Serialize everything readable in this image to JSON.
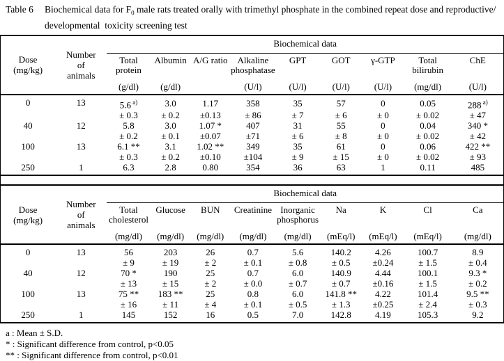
{
  "title": {
    "label": "Table 6",
    "caption_pre": "Biochemical data for F",
    "caption_sub": "0",
    "caption_post": " male rats treated orally with trimethyl phosphate in the combined repeat dose and reproductive/",
    "caption_line2": "developmental  toxicity screening test"
  },
  "header": {
    "dose_label": "Dose",
    "dose_unit": "(mg/kg)",
    "n_lines": [
      "Number",
      "of",
      "animals"
    ]
  },
  "table1": {
    "spanner": "Biochemical data",
    "columns": [
      {
        "name": "Total protein",
        "unit": "(g/dl)"
      },
      {
        "name": "Albumin",
        "unit": "(g/dl)"
      },
      {
        "name": "A/G ratio",
        "unit": ""
      },
      {
        "name": "Alkaline phosphatase",
        "unit": "(U/l)"
      },
      {
        "name": "GPT",
        "unit": "(U/l)"
      },
      {
        "name": "GOT",
        "unit": "(U/l)"
      },
      {
        "name": "γ-GTP",
        "unit": "(U/l)"
      },
      {
        "name": "Total bilirubin",
        "unit": "(mg/dl)"
      },
      {
        "name": "ChE",
        "unit": "(U/l)"
      }
    ],
    "rows": [
      {
        "dose": "0",
        "n": "13",
        "cells": [
          {
            "m": "5.6",
            "mk": "a)",
            "sd": "± 0.3"
          },
          {
            "m": "3.0",
            "sd": "± 0.2"
          },
          {
            "m": "1.17",
            "sd": "±0.13"
          },
          {
            "m": "358",
            "sd": "± 86"
          },
          {
            "m": "35",
            "sd": "± 7"
          },
          {
            "m": "57",
            "sd": "± 6"
          },
          {
            "m": "0",
            "sd": "± 0"
          },
          {
            "m": "0.05",
            "sd": "± 0.02"
          },
          {
            "m": "288",
            "mk": "a)",
            "sd": "± 47"
          }
        ]
      },
      {
        "dose": "40",
        "n": "12",
        "cells": [
          {
            "m": "5.8",
            "sd": "± 0.2"
          },
          {
            "m": "3.0",
            "sd": "± 0.1"
          },
          {
            "m": "1.07",
            "mk": "*",
            "sd": "±0.07"
          },
          {
            "m": "407",
            "sd": "±71"
          },
          {
            "m": "31",
            "sd": "± 6"
          },
          {
            "m": "55",
            "sd": "± 8"
          },
          {
            "m": "0",
            "sd": "± 0"
          },
          {
            "m": "0.04",
            "sd": "± 0.02"
          },
          {
            "m": "340",
            "mk": "*",
            "sd": "± 42"
          }
        ]
      },
      {
        "dose": "100",
        "n": "13",
        "cells": [
          {
            "m": "6.1",
            "mk": "**",
            "sd": "± 0.3"
          },
          {
            "m": "3.1",
            "sd": "± 0.2"
          },
          {
            "m": "1.02",
            "mk": "**",
            "sd": "±0.10"
          },
          {
            "m": "349",
            "sd": "±104"
          },
          {
            "m": "35",
            "sd": "± 9"
          },
          {
            "m": "61",
            "sd": "± 15"
          },
          {
            "m": "0",
            "sd": "± 0"
          },
          {
            "m": "0.06",
            "sd": "± 0.02"
          },
          {
            "m": "422",
            "mk": "**",
            "sd": "± 93"
          }
        ]
      },
      {
        "dose": "250",
        "n": "1",
        "cells": [
          {
            "m": "6.3"
          },
          {
            "m": "2.8"
          },
          {
            "m": "0.80"
          },
          {
            "m": "354"
          },
          {
            "m": "36"
          },
          {
            "m": "63"
          },
          {
            "m": "1"
          },
          {
            "m": "0.11"
          },
          {
            "m": "485"
          }
        ]
      }
    ]
  },
  "table2": {
    "spanner": "Biochemical data",
    "columns": [
      {
        "name": "Total cholesterol",
        "unit": "(mg/dl)"
      },
      {
        "name": "Glucose",
        "unit": "(mg/dl)"
      },
      {
        "name": "BUN",
        "unit": "(mg/dl)"
      },
      {
        "name": "Creatinine",
        "unit": "(mg/dl)"
      },
      {
        "name": "Inorganic phosphorus",
        "unit": "(mg/dl)"
      },
      {
        "name": "Na",
        "unit": "(mEq/l)"
      },
      {
        "name": "K",
        "unit": "(mEq/l)"
      },
      {
        "name": "Cl",
        "unit": "(mEq/l)"
      },
      {
        "name": "Ca",
        "unit": "(mg/dl)"
      }
    ],
    "rows": [
      {
        "dose": "0",
        "n": "13",
        "cells": [
          {
            "m": "56",
            "sd": "± 9"
          },
          {
            "m": "203",
            "sd": "± 19"
          },
          {
            "m": "26",
            "sd": "± 2"
          },
          {
            "m": "0.7",
            "sd": "± 0.1"
          },
          {
            "m": "5.6",
            "sd": "± 0.8"
          },
          {
            "m": "140.2",
            "sd": "± 0.5"
          },
          {
            "m": "4.26",
            "sd": "±0.24"
          },
          {
            "m": "100.7",
            "sd": "± 1.5"
          },
          {
            "m": "8.9",
            "sd": "± 0.4"
          }
        ]
      },
      {
        "dose": "40",
        "n": "12",
        "cells": [
          {
            "m": "70",
            "mk": "*",
            "sd": "± 13"
          },
          {
            "m": "190",
            "sd": "± 15"
          },
          {
            "m": "25",
            "sd": "± 2"
          },
          {
            "m": "0.7",
            "sd": "± 0.0"
          },
          {
            "m": "6.0",
            "sd": "± 0.7"
          },
          {
            "m": "140.9",
            "sd": "± 0.7"
          },
          {
            "m": "4.44",
            "sd": "±0.16"
          },
          {
            "m": "100.1",
            "sd": "± 1.5"
          },
          {
            "m": "9.3",
            "mk": "*",
            "sd": "± 0.2"
          }
        ]
      },
      {
        "dose": "100",
        "n": "13",
        "cells": [
          {
            "m": "75",
            "mk": "**",
            "sd": "± 16"
          },
          {
            "m": "183",
            "mk": "**",
            "sd": "± 11"
          },
          {
            "m": "25",
            "sd": "± 4"
          },
          {
            "m": "0.8",
            "sd": "± 0.1"
          },
          {
            "m": "6.0",
            "sd": "± 0.5"
          },
          {
            "m": "141.8",
            "mk": "**",
            "sd": "± 1.3"
          },
          {
            "m": "4.22",
            "sd": "±0.25"
          },
          {
            "m": "101.4",
            "sd": "± 2.4"
          },
          {
            "m": "9.5",
            "mk": "**",
            "sd": "± 0.3"
          }
        ]
      },
      {
        "dose": "250",
        "n": "1",
        "cells": [
          {
            "m": "145"
          },
          {
            "m": "152"
          },
          {
            "m": "16"
          },
          {
            "m": "0.5"
          },
          {
            "m": "7.0"
          },
          {
            "m": "142.8"
          },
          {
            "m": "4.19"
          },
          {
            "m": "105.3"
          },
          {
            "m": "9.2"
          }
        ]
      }
    ]
  },
  "footnotes": [
    "a : Mean ± S.D.",
    "* : Significant difference from control, p<0.05",
    "** : Significant difference from control, p<0.01"
  ]
}
